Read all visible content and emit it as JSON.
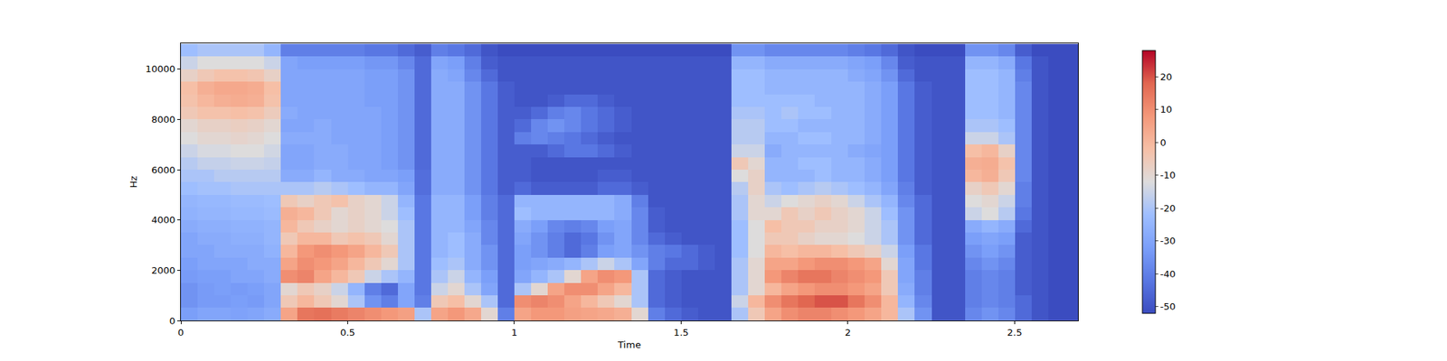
{
  "chart_data": {
    "type": "heatmap",
    "xlabel": "Time",
    "ylabel": "Hz",
    "xlim": [
      0,
      2.69
    ],
    "ylim": [
      0,
      11025
    ],
    "xticks": [
      0,
      0.5,
      1,
      1.5,
      2,
      2.5
    ],
    "yticks": [
      0,
      2000,
      4000,
      6000,
      8000,
      10000
    ],
    "colorbar": {
      "range": [
        -52,
        28
      ],
      "ticks": [
        -50,
        -40,
        -30,
        -20,
        -10,
        0,
        10,
        20
      ]
    },
    "x": [
      0.025,
      0.075,
      0.125,
      0.175,
      0.225,
      0.275,
      0.325,
      0.375,
      0.425,
      0.475,
      0.525,
      0.575,
      0.625,
      0.675,
      0.725,
      0.775,
      0.825,
      0.875,
      0.925,
      0.975,
      1.025,
      1.075,
      1.125,
      1.175,
      1.225,
      1.275,
      1.325,
      1.375,
      1.425,
      1.475,
      1.525,
      1.575,
      1.625,
      1.675,
      1.725,
      1.775,
      1.825,
      1.875,
      1.925,
      1.975,
      2.025,
      2.075,
      2.125,
      2.175,
      2.225,
      2.275,
      2.325,
      2.375,
      2.425,
      2.475,
      2.525,
      2.575,
      2.625,
      2.675
    ],
    "y": [
      250,
      750,
      1250,
      1750,
      2250,
      2750,
      3250,
      3750,
      4250,
      4750,
      5250,
      5750,
      6250,
      6750,
      7250,
      7750,
      8250,
      8750,
      9250,
      9750,
      10250,
      10750
    ],
    "z": [
      [
        -32,
        -30,
        -30,
        -31,
        -30,
        -28,
        5,
        15,
        16,
        14,
        12,
        10,
        8,
        6,
        -20,
        5,
        8,
        4,
        -10,
        -40,
        5,
        8,
        8,
        6,
        5,
        4,
        2,
        -10,
        -40,
        -45,
        -48,
        -50,
        -50,
        -20,
        -5,
        5,
        10,
        12,
        12,
        10,
        8,
        5,
        0,
        -20,
        -35,
        -50,
        -50,
        -38,
        -35,
        -38,
        -45,
        -50,
        -52,
        -52
      ],
      [
        -35,
        -33,
        -33,
        -32,
        -33,
        -30,
        -5,
        0,
        -5,
        -10,
        -20,
        -35,
        -40,
        -30,
        -40,
        -5,
        -2,
        -10,
        -20,
        -45,
        10,
        12,
        10,
        5,
        0,
        -5,
        -10,
        -20,
        -45,
        -48,
        -50,
        -50,
        -50,
        -15,
        0,
        10,
        15,
        18,
        20,
        20,
        15,
        10,
        0,
        -25,
        -38,
        -50,
        -50,
        -40,
        -38,
        -40,
        -45,
        -50,
        -52,
        -52
      ],
      [
        -35,
        -33,
        -32,
        -33,
        -32,
        -30,
        -10,
        -5,
        -8,
        -15,
        -25,
        -40,
        -45,
        -30,
        -42,
        -15,
        -10,
        -20,
        -30,
        -45,
        -20,
        -10,
        5,
        10,
        10,
        5,
        0,
        -20,
        -45,
        -48,
        -50,
        -50,
        -50,
        -20,
        -10,
        0,
        5,
        8,
        10,
        10,
        8,
        5,
        -5,
        -28,
        -40,
        -50,
        -50,
        -40,
        -38,
        -40,
        -48,
        -50,
        -52,
        -52
      ],
      [
        -33,
        -32,
        -32,
        -30,
        -30,
        -28,
        10,
        12,
        5,
        0,
        -5,
        -15,
        -20,
        -25,
        -42,
        -20,
        -15,
        -25,
        -32,
        -45,
        -30,
        -25,
        -20,
        -10,
        5,
        10,
        8,
        -20,
        -45,
        -48,
        -50,
        -50,
        -50,
        -20,
        -10,
        8,
        12,
        15,
        15,
        12,
        10,
        8,
        -5,
        -30,
        -40,
        -50,
        -50,
        -40,
        -38,
        -40,
        -48,
        -50,
        -52,
        -52
      ],
      [
        -32,
        -30,
        -30,
        -30,
        -28,
        -28,
        5,
        10,
        8,
        5,
        0,
        -5,
        -10,
        -20,
        -42,
        -22,
        -20,
        -28,
        -35,
        -45,
        -32,
        -30,
        -28,
        -25,
        -20,
        -15,
        -20,
        -30,
        -40,
        -45,
        -45,
        -48,
        -50,
        -20,
        -10,
        5,
        5,
        8,
        10,
        10,
        8,
        5,
        -10,
        -30,
        -42,
        -50,
        -50,
        -38,
        -35,
        -38,
        -48,
        -50,
        -52,
        -52
      ],
      [
        -30,
        -30,
        -28,
        -28,
        -28,
        -26,
        0,
        8,
        10,
        8,
        5,
        0,
        -5,
        -20,
        -42,
        -25,
        -22,
        -28,
        -35,
        -45,
        -32,
        -35,
        -40,
        -45,
        -40,
        -32,
        -30,
        -35,
        -40,
        -42,
        -45,
        -48,
        -50,
        -22,
        -12,
        0,
        -2,
        0,
        0,
        -2,
        -5,
        -8,
        -15,
        -32,
        -42,
        -50,
        -50,
        -35,
        -32,
        -35,
        -48,
        -50,
        -52,
        -52
      ],
      [
        -30,
        -28,
        -28,
        -27,
        -27,
        -25,
        -5,
        0,
        0,
        -5,
        -3,
        -5,
        -10,
        -20,
        -42,
        -25,
        -22,
        -28,
        -38,
        -45,
        -30,
        -35,
        -40,
        -45,
        -42,
        -35,
        -30,
        -38,
        -45,
        -48,
        -50,
        -50,
        -50,
        -22,
        -12,
        -5,
        -5,
        -8,
        -10,
        -10,
        -12,
        -15,
        -20,
        -35,
        -45,
        -50,
        -50,
        -32,
        -30,
        -32,
        -48,
        -50,
        -52,
        -52
      ],
      [
        -28,
        -27,
        -27,
        -26,
        -26,
        -25,
        0,
        -5,
        -8,
        -10,
        -8,
        -10,
        -12,
        -20,
        -42,
        -25,
        -25,
        -30,
        -38,
        -45,
        -28,
        -32,
        -38,
        -40,
        -38,
        -32,
        -30,
        -38,
        -48,
        -50,
        -50,
        -50,
        -50,
        -22,
        -12,
        -2,
        -5,
        -5,
        -8,
        -8,
        -10,
        -15,
        -20,
        -35,
        -45,
        -50,
        -50,
        -28,
        -25,
        -28,
        -45,
        -50,
        -52,
        -52
      ],
      [
        -26,
        -25,
        -25,
        -24,
        -24,
        -23,
        2,
        0,
        -5,
        -10,
        -8,
        -10,
        -15,
        -22,
        -42,
        -25,
        -25,
        -32,
        -40,
        -45,
        -22,
        -25,
        -25,
        -25,
        -25,
        -25,
        -28,
        -38,
        -48,
        -50,
        -50,
        -50,
        -50,
        -20,
        -10,
        -10,
        -5,
        -8,
        -5,
        -8,
        -10,
        -15,
        -22,
        -35,
        -45,
        -50,
        -50,
        -15,
        -12,
        -18,
        -42,
        -50,
        -52,
        -52
      ],
      [
        -25,
        -24,
        -24,
        -23,
        -23,
        -22,
        -5,
        -8,
        -5,
        -3,
        -8,
        -10,
        -15,
        -25,
        -42,
        -25,
        -25,
        -32,
        -40,
        -45,
        -25,
        -25,
        -25,
        -25,
        -25,
        -25,
        -28,
        -40,
        -50,
        -50,
        -50,
        -50,
        -50,
        -20,
        -10,
        -15,
        -12,
        -10,
        -8,
        -10,
        -15,
        -20,
        -25,
        -38,
        -45,
        -50,
        -50,
        -12,
        -10,
        -15,
        -40,
        -50,
        -52,
        -52
      ],
      [
        -22,
        -21,
        -21,
        -20,
        -20,
        -20,
        -20,
        -20,
        -18,
        -20,
        -22,
        -25,
        -25,
        -30,
        -44,
        -28,
        -28,
        -35,
        -42,
        -48,
        -45,
        -48,
        -48,
        -48,
        -48,
        -45,
        -45,
        -48,
        -50,
        -50,
        -50,
        -50,
        -50,
        -18,
        -8,
        -20,
        -22,
        -20,
        -18,
        -20,
        -22,
        -25,
        -30,
        -40,
        -48,
        -50,
        -50,
        -8,
        -5,
        -10,
        -40,
        -50,
        -52,
        -52
      ],
      [
        -20,
        -20,
        -18,
        -18,
        -18,
        -18,
        -28,
        -28,
        -25,
        -28,
        -28,
        -30,
        -30,
        -32,
        -44,
        -28,
        -28,
        -35,
        -42,
        -48,
        -48,
        -50,
        -50,
        -50,
        -50,
        -48,
        -48,
        -50,
        -50,
        -50,
        -50,
        -50,
        -50,
        -12,
        -8,
        -25,
        -25,
        -25,
        -22,
        -25,
        -25,
        -28,
        -32,
        -42,
        -48,
        -50,
        -50,
        0,
        2,
        -5,
        -38,
        -50,
        -52,
        -52
      ],
      [
        -18,
        -16,
        -16,
        -15,
        -15,
        -16,
        -30,
        -30,
        -28,
        -28,
        -30,
        -30,
        -32,
        -35,
        -45,
        -28,
        -28,
        -35,
        -42,
        -48,
        -48,
        -50,
        -50,
        -50,
        -50,
        -50,
        -50,
        -50,
        -50,
        -50,
        -50,
        -50,
        -50,
        -5,
        -10,
        -25,
        -25,
        -22,
        -22,
        -25,
        -25,
        -28,
        -32,
        -42,
        -48,
        -50,
        -50,
        2,
        3,
        -3,
        -38,
        -50,
        -52,
        -52
      ],
      [
        -15,
        -13,
        -13,
        -12,
        -12,
        -14,
        -30,
        -30,
        -28,
        -28,
        -30,
        -30,
        -32,
        -35,
        -45,
        -28,
        -28,
        -35,
        -42,
        -48,
        -48,
        -48,
        -45,
        -42,
        -42,
        -45,
        -48,
        -50,
        -50,
        -50,
        -50,
        -50,
        -50,
        -15,
        -15,
        -28,
        -25,
        -25,
        -25,
        -25,
        -28,
        -30,
        -32,
        -42,
        -48,
        -50,
        -50,
        -2,
        0,
        -8,
        -38,
        -50,
        -52,
        -52
      ],
      [
        -12,
        -10,
        -10,
        -9,
        -10,
        -12,
        -28,
        -28,
        -28,
        -30,
        -30,
        -30,
        -32,
        -35,
        -45,
        -28,
        -28,
        -35,
        -42,
        -48,
        -40,
        -38,
        -40,
        -42,
        -45,
        -48,
        -50,
        -50,
        -50,
        -50,
        -50,
        -50,
        -50,
        -18,
        -18,
        -25,
        -25,
        -22,
        -22,
        -25,
        -25,
        -28,
        -32,
        -42,
        -48,
        -50,
        -50,
        -15,
        -15,
        -20,
        -38,
        -50,
        -52,
        -52
      ],
      [
        -10,
        -8,
        -8,
        -7,
        -8,
        -10,
        -30,
        -30,
        -28,
        -30,
        -30,
        -30,
        -32,
        -35,
        -45,
        -28,
        -28,
        -35,
        -42,
        -48,
        -45,
        -38,
        -35,
        -38,
        -42,
        -45,
        -48,
        -50,
        -50,
        -50,
        -50,
        -50,
        -50,
        -18,
        -18,
        -22,
        -22,
        -25,
        -25,
        -25,
        -25,
        -28,
        -32,
        -42,
        -48,
        -50,
        -50,
        -20,
        -20,
        -22,
        -38,
        -50,
        -52,
        -52
      ],
      [
        -5,
        -3,
        -3,
        -2,
        -3,
        -6,
        -28,
        -30,
        -30,
        -30,
        -30,
        -30,
        -32,
        -35,
        -45,
        -28,
        -28,
        -35,
        -42,
        -48,
        -48,
        -45,
        -40,
        -38,
        -42,
        -45,
        -48,
        -50,
        -50,
        -50,
        -50,
        -50,
        -50,
        -20,
        -20,
        -22,
        -20,
        -22,
        -22,
        -25,
        -25,
        -28,
        -32,
        -42,
        -48,
        -50,
        -50,
        -22,
        -22,
        -25,
        -38,
        -50,
        -52,
        -52
      ],
      [
        -3,
        0,
        2,
        3,
        2,
        -3,
        -30,
        -30,
        -30,
        -30,
        -30,
        -32,
        -32,
        -35,
        -45,
        -28,
        -28,
        -35,
        -42,
        -48,
        -50,
        -50,
        -48,
        -45,
        -45,
        -48,
        -50,
        -50,
        -50,
        -50,
        -50,
        -50,
        -50,
        -22,
        -22,
        -22,
        -22,
        -22,
        -25,
        -25,
        -25,
        -28,
        -32,
        -42,
        -48,
        -50,
        -50,
        -22,
        -22,
        -25,
        -38,
        -50,
        -52,
        -52
      ],
      [
        -2,
        2,
        4,
        4,
        3,
        -2,
        -30,
        -30,
        -30,
        -30,
        -30,
        -32,
        -32,
        -35,
        -45,
        -28,
        -28,
        -35,
        -42,
        -48,
        -50,
        -50,
        -50,
        -50,
        -50,
        -50,
        -50,
        -50,
        -50,
        -50,
        -50,
        -50,
        -50,
        -22,
        -22,
        -25,
        -25,
        -25,
        -25,
        -25,
        -25,
        -28,
        -32,
        -42,
        -48,
        -50,
        -50,
        -22,
        -22,
        -25,
        -38,
        -50,
        -52,
        -52
      ],
      [
        -8,
        -5,
        -3,
        -3,
        -4,
        -8,
        -30,
        -30,
        -30,
        -30,
        -30,
        -32,
        -32,
        -35,
        -45,
        -28,
        -30,
        -38,
        -45,
        -50,
        -50,
        -50,
        -50,
        -50,
        -50,
        -50,
        -50,
        -50,
        -50,
        -50,
        -50,
        -50,
        -50,
        -22,
        -22,
        -25,
        -25,
        -25,
        -25,
        -25,
        -28,
        -30,
        -35,
        -45,
        -50,
        -50,
        -50,
        -22,
        -22,
        -25,
        -40,
        -50,
        -52,
        -52
      ],
      [
        -15,
        -12,
        -12,
        -12,
        -12,
        -15,
        -30,
        -32,
        -32,
        -32,
        -32,
        -34,
        -34,
        -38,
        -45,
        -30,
        -32,
        -40,
        -48,
        -50,
        -50,
        -50,
        -50,
        -50,
        -50,
        -50,
        -50,
        -50,
        -50,
        -50,
        -50,
        -50,
        -50,
        -25,
        -25,
        -28,
        -28,
        -28,
        -28,
        -28,
        -30,
        -32,
        -38,
        -48,
        -50,
        -50,
        -50,
        -25,
        -25,
        -28,
        -42,
        -50,
        -52,
        -52
      ],
      [
        -22,
        -20,
        -20,
        -20,
        -20,
        -25,
        -40,
        -40,
        -40,
        -40,
        -40,
        -42,
        -42,
        -45,
        -48,
        -40,
        -42,
        -45,
        -50,
        -52,
        -52,
        -52,
        -52,
        -52,
        -52,
        -52,
        -52,
        -52,
        -52,
        -52,
        -52,
        -52,
        -52,
        -35,
        -35,
        -38,
        -38,
        -38,
        -38,
        -38,
        -40,
        -42,
        -45,
        -50,
        -52,
        -52,
        -52,
        -35,
        -35,
        -38,
        -48,
        -52,
        -52,
        -52
      ]
    ]
  }
}
